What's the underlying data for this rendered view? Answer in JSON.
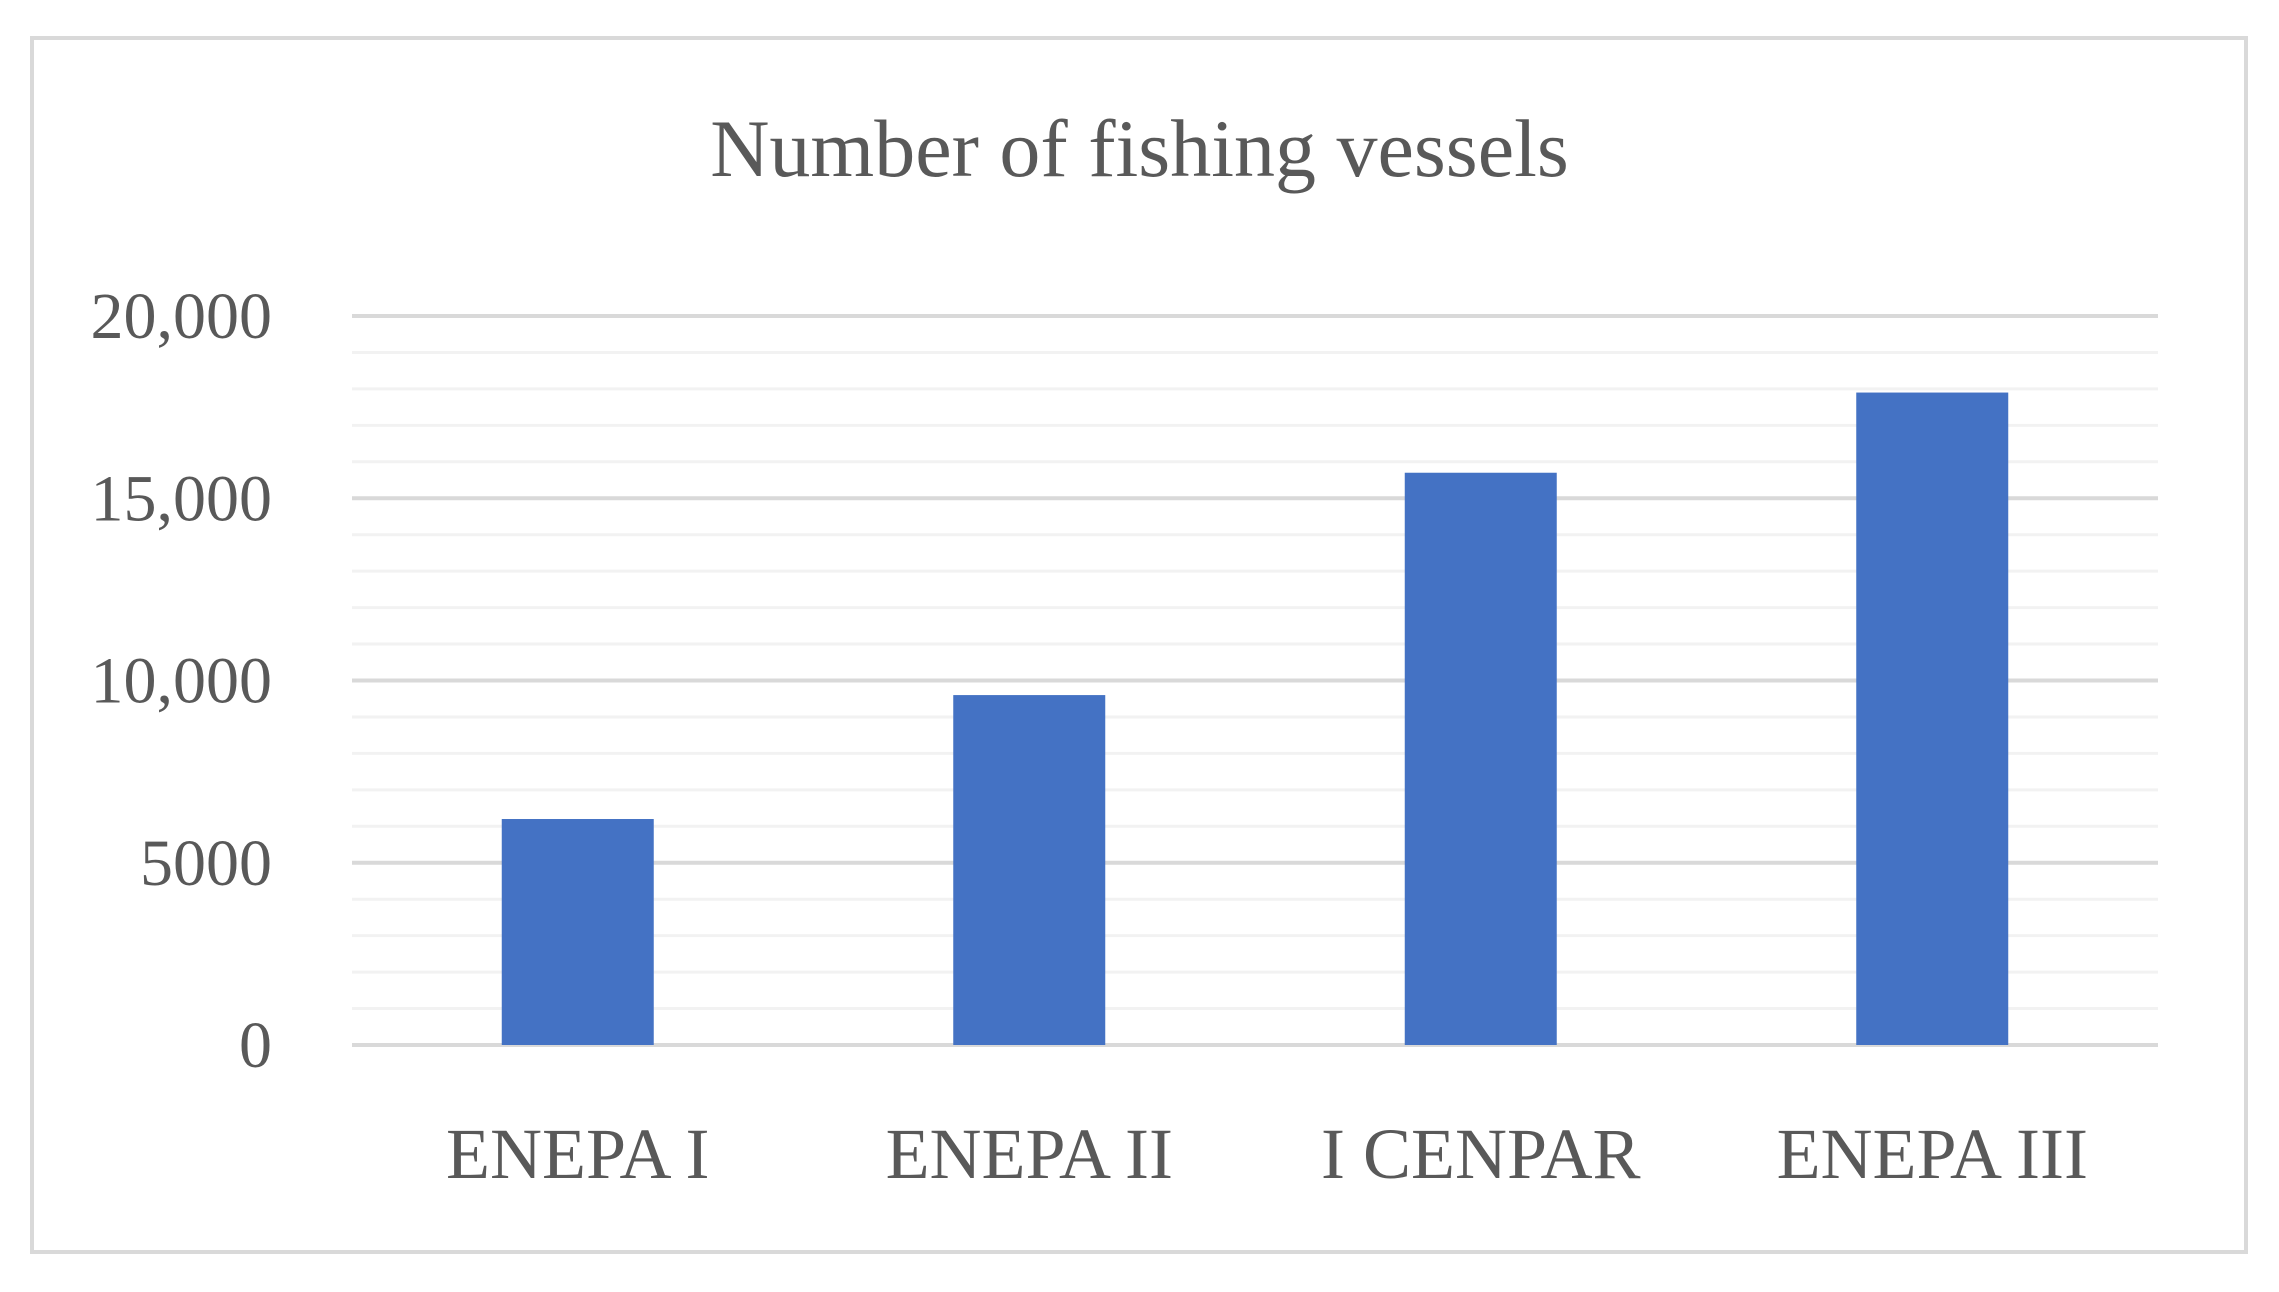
{
  "chart_data": {
    "type": "bar",
    "title": "Number of fishing vessels",
    "xlabel": "",
    "ylabel": "",
    "categories": [
      "ENEPA I",
      "ENEPA II",
      "I CENPAR",
      "ENEPA III"
    ],
    "values": [
      6200,
      9600,
      15700,
      17900
    ],
    "ylim": [
      0,
      20000
    ],
    "yticks": [
      0,
      5000,
      10000,
      15000,
      20000
    ],
    "ytick_labels": [
      "0",
      "5000",
      "10,000",
      "15,000",
      "20,000"
    ],
    "minor_step": 1000,
    "grid": true,
    "legend": "none",
    "bar_color": "#4472c4",
    "major_grid_color": "#d9d9d9",
    "minor_grid_color": "#f2f2f2",
    "text_color": "#595959"
  }
}
